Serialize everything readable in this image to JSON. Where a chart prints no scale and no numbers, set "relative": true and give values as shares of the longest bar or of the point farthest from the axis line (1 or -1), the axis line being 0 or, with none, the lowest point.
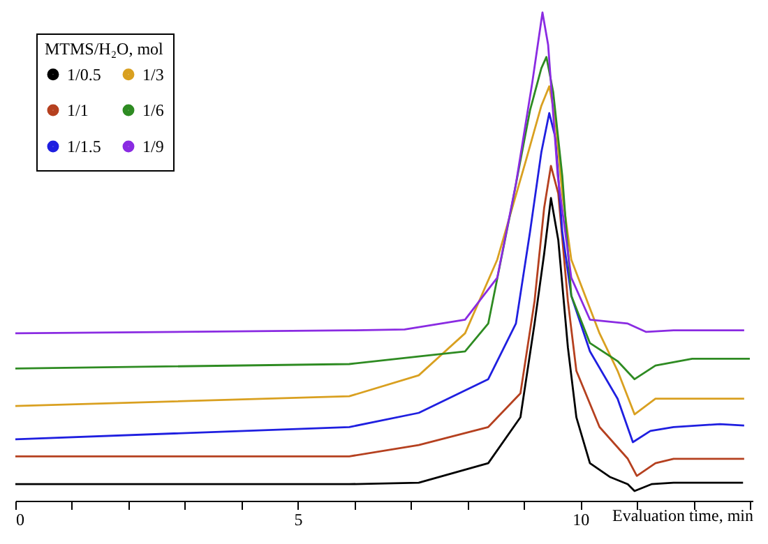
{
  "chart_data": {
    "type": "line",
    "relative": true,
    "xlabel": "Evaluation time, min",
    "legend_title": "MTMS/H₂O, mol",
    "legend": "top left",
    "grid": false,
    "marker": "none",
    "line_style": "solid",
    "tick_labels": "x",
    "xlim": [
      0,
      13.05
    ],
    "xticks": [
      0,
      {
        "value": 1,
        "label": null
      },
      {
        "value": 2,
        "label": null
      },
      {
        "value": 3,
        "label": null
      },
      {
        "value": 4,
        "label": null
      },
      5,
      {
        "value": 6,
        "label": null
      },
      {
        "value": 7,
        "label": null
      },
      {
        "value": 8,
        "label": null
      },
      {
        "value": 9,
        "label": null
      },
      10,
      {
        "value": 11,
        "label": null
      },
      {
        "value": 12,
        "label": null
      },
      {
        "value": 13,
        "label": null
      }
    ],
    "series": [
      {
        "name": "1/0.5",
        "color": "#000000",
        "x": [
          0,
          5.91,
          7.14,
          8.37,
          8.94,
          9.19,
          9.36,
          9.48,
          9.61,
          9.78,
          9.93,
          10.17,
          10.52,
          10.84,
          10.96,
          11.26,
          11.65,
          12.88
        ],
        "values": [
          0.034,
          0.034,
          0.037,
          0.077,
          0.171,
          0.363,
          0.506,
          0.62,
          0.534,
          0.314,
          0.171,
          0.077,
          0.049,
          0.034,
          0.02,
          0.034,
          0.037,
          0.037
        ]
      },
      {
        "name": "1/1",
        "color": "#b5401f",
        "x": [
          0,
          5.91,
          7.14,
          8.37,
          8.94,
          9.19,
          9.36,
          9.48,
          9.61,
          9.78,
          9.93,
          10.34,
          10.84,
          11.0,
          11.33,
          11.65,
          12.9
        ],
        "values": [
          0.091,
          0.091,
          0.114,
          0.151,
          0.22,
          0.409,
          0.6,
          0.686,
          0.629,
          0.409,
          0.266,
          0.151,
          0.086,
          0.051,
          0.077,
          0.086,
          0.086
        ]
      },
      {
        "name": "1/1.5",
        "color": "#1f1fe0",
        "x": [
          0,
          5.91,
          7.14,
          8.37,
          8.86,
          9.11,
          9.31,
          9.45,
          9.56,
          9.68,
          9.84,
          10.17,
          10.66,
          10.93,
          11.24,
          11.65,
          12.47,
          12.9
        ],
        "values": [
          0.126,
          0.151,
          0.18,
          0.249,
          0.363,
          0.551,
          0.714,
          0.794,
          0.743,
          0.551,
          0.42,
          0.306,
          0.209,
          0.12,
          0.143,
          0.151,
          0.157,
          0.154
        ]
      },
      {
        "name": "1/3",
        "color": "#d9a020",
        "x": [
          0,
          5.91,
          7.14,
          7.96,
          8.53,
          9.03,
          9.31,
          9.45,
          9.56,
          9.68,
          9.84,
          10.34,
          10.66,
          10.96,
          11.33,
          12.9
        ],
        "values": [
          0.194,
          0.214,
          0.257,
          0.343,
          0.494,
          0.694,
          0.809,
          0.849,
          0.78,
          0.629,
          0.494,
          0.343,
          0.266,
          0.177,
          0.209,
          0.209
        ]
      },
      {
        "name": "1/6",
        "color": "#2e8b22",
        "x": [
          0,
          5.91,
          7.96,
          8.37,
          8.78,
          9.11,
          9.31,
          9.4,
          9.52,
          9.68,
          9.84,
          10.17,
          10.66,
          10.96,
          11.33,
          11.98,
          13.0
        ],
        "values": [
          0.271,
          0.28,
          0.306,
          0.363,
          0.6,
          0.8,
          0.886,
          0.909,
          0.837,
          0.666,
          0.42,
          0.323,
          0.286,
          0.249,
          0.277,
          0.291,
          0.291
        ]
      },
      {
        "name": "1/9",
        "color": "#8a2be2",
        "x": [
          0,
          5.91,
          6.89,
          7.96,
          8.53,
          8.86,
          9.15,
          9.33,
          9.43,
          9.6,
          9.84,
          10.17,
          10.84,
          11.16,
          11.65,
          12.9
        ],
        "values": [
          0.343,
          0.349,
          0.351,
          0.371,
          0.457,
          0.649,
          0.857,
          1,
          0.934,
          0.666,
          0.457,
          0.371,
          0.363,
          0.346,
          0.349,
          0.349
        ]
      }
    ]
  }
}
